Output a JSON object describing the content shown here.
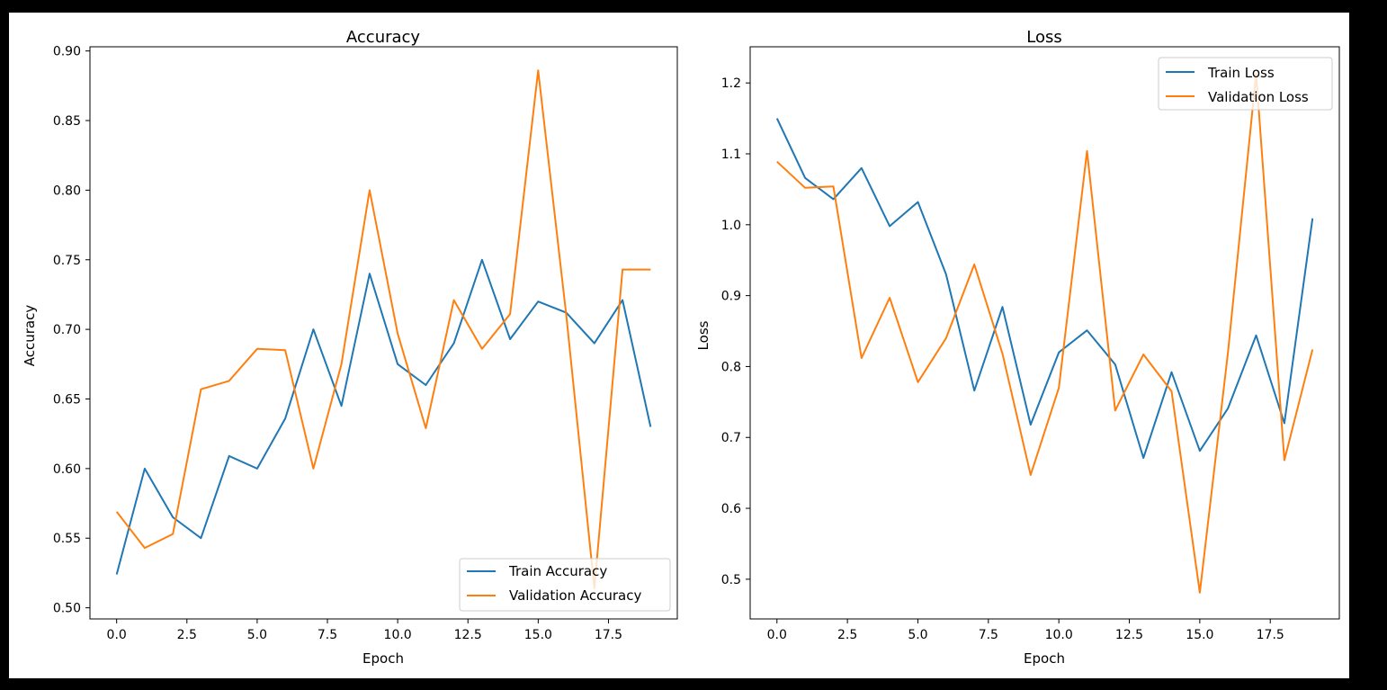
{
  "chart_data": [
    {
      "type": "line",
      "title": "Accuracy",
      "xlabel": "Epoch",
      "ylabel": "Accuracy",
      "xlim": [
        -0.95,
        19.95
      ],
      "ylim": [
        0.492,
        0.903
      ],
      "xticks": [
        0.0,
        2.5,
        5.0,
        7.5,
        10.0,
        12.5,
        15.0,
        17.5
      ],
      "xtick_labels": [
        "0.0",
        "2.5",
        "5.0",
        "7.5",
        "10.0",
        "12.5",
        "15.0",
        "17.5"
      ],
      "yticks": [
        0.5,
        0.55,
        0.6,
        0.65,
        0.7,
        0.75,
        0.8,
        0.85,
        0.9
      ],
      "ytick_labels": [
        "0.50",
        "0.55",
        "0.60",
        "0.65",
        "0.70",
        "0.75",
        "0.80",
        "0.85",
        "0.90"
      ],
      "grid": false,
      "legend_position": "lower-right",
      "x": [
        0,
        1,
        2,
        3,
        4,
        5,
        6,
        7,
        8,
        9,
        10,
        11,
        12,
        13,
        14,
        15,
        16,
        17,
        18,
        19
      ],
      "series": [
        {
          "name": "Train Accuracy",
          "color": "#1f77b4",
          "values": [
            0.524,
            0.6,
            0.565,
            0.55,
            0.609,
            0.6,
            0.636,
            0.7,
            0.645,
            0.74,
            0.675,
            0.66,
            0.69,
            0.75,
            0.693,
            0.72,
            0.712,
            0.69,
            0.721,
            0.63
          ]
        },
        {
          "name": "Validation Accuracy",
          "color": "#ff7f0e",
          "values": [
            0.569,
            0.543,
            0.553,
            0.657,
            0.663,
            0.686,
            0.685,
            0.6,
            0.675,
            0.8,
            0.697,
            0.629,
            0.721,
            0.686,
            0.711,
            0.886,
            0.71,
            0.514,
            0.743,
            0.743
          ]
        }
      ]
    },
    {
      "type": "line",
      "title": "Loss",
      "xlabel": "Epoch",
      "ylabel": "Loss",
      "xlim": [
        -0.95,
        19.95
      ],
      "ylim": [
        0.444,
        1.251
      ],
      "xticks": [
        0.0,
        2.5,
        5.0,
        7.5,
        10.0,
        12.5,
        15.0,
        17.5
      ],
      "xtick_labels": [
        "0.0",
        "2.5",
        "5.0",
        "7.5",
        "10.0",
        "12.5",
        "15.0",
        "17.5"
      ],
      "yticks": [
        0.5,
        0.6,
        0.7,
        0.8,
        0.9,
        1.0,
        1.1,
        1.2
      ],
      "ytick_labels": [
        "0.5",
        "0.6",
        "0.7",
        "0.8",
        "0.9",
        "1.0",
        "1.1",
        "1.2"
      ],
      "grid": false,
      "legend_position": "upper-right",
      "x": [
        0,
        1,
        2,
        3,
        4,
        5,
        6,
        7,
        8,
        9,
        10,
        11,
        12,
        13,
        14,
        15,
        16,
        17,
        18,
        19
      ],
      "series": [
        {
          "name": "Train Loss",
          "color": "#1f77b4",
          "values": [
            1.15,
            1.066,
            1.036,
            1.08,
            0.998,
            1.032,
            0.93,
            0.766,
            0.884,
            0.718,
            0.82,
            0.851,
            0.803,
            0.671,
            0.792,
            0.681,
            0.741,
            0.844,
            0.72,
            1.009
          ]
        },
        {
          "name": "Validation Loss",
          "color": "#ff7f0e",
          "values": [
            1.089,
            1.052,
            1.054,
            0.812,
            0.897,
            0.778,
            0.84,
            0.944,
            0.818,
            0.647,
            0.77,
            1.104,
            0.738,
            0.817,
            0.765,
            0.481,
            0.82,
            1.213,
            0.668,
            0.824
          ]
        }
      ]
    }
  ]
}
